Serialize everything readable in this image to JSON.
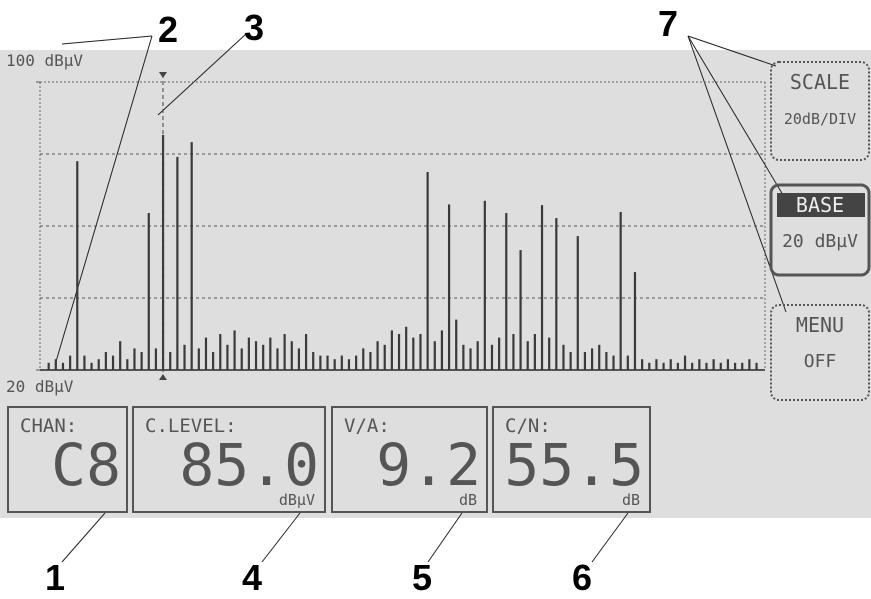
{
  "callouts": [
    "1",
    "2",
    "3",
    "4",
    "5",
    "6",
    "7"
  ],
  "chart_data": {
    "type": "bar",
    "ylim": [
      20,
      100
    ],
    "yticks": [
      {
        "value": 20,
        "label": "20 dBµV"
      },
      {
        "value": 100,
        "label": "100 dBµV"
      }
    ],
    "gridlines": [
      40,
      60,
      80
    ],
    "grid": true,
    "color": "#3a3a3a",
    "marker_index": 16,
    "values": [
      22,
      23,
      22,
      24,
      78,
      24,
      22,
      23,
      25,
      24,
      28,
      23,
      26,
      25,
      63.6,
      26,
      85.3,
      25,
      79.2,
      27,
      83.3,
      26,
      29,
      25,
      30,
      27,
      31,
      26,
      29,
      28,
      27,
      29,
      26,
      30,
      28,
      26,
      30,
      25,
      24,
      24,
      23,
      24,
      23,
      24,
      26,
      25,
      28,
      27,
      31,
      30,
      32,
      29,
      30,
      75,
      28,
      31,
      66,
      34,
      27,
      26,
      28,
      67,
      27,
      29,
      63.6,
      30,
      53.3,
      28,
      30,
      65.8,
      29,
      62.2,
      27,
      25,
      57.2,
      25,
      26,
      27,
      25,
      24,
      63.9,
      24,
      47.2,
      23,
      22,
      23,
      22,
      23,
      22,
      24,
      22,
      23,
      22,
      23,
      22,
      23,
      22,
      22,
      23,
      22
    ]
  },
  "side_buttons": [
    {
      "title": "SCALE",
      "value": "20dB/DIV"
    },
    {
      "title": "BASE",
      "value": "20 dBµV"
    },
    {
      "title": "MENU",
      "value": "OFF"
    }
  ],
  "readouts": [
    {
      "label": "CHAN:",
      "value": "C8"
    },
    {
      "label": "C.LEVEL:",
      "value": "85.0",
      "unit": "dBµV"
    },
    {
      "label": "V/A:",
      "value": "9.2",
      "unit": "dB"
    },
    {
      "label": "C/N:",
      "value": "55.5",
      "unit": "dB"
    }
  ]
}
